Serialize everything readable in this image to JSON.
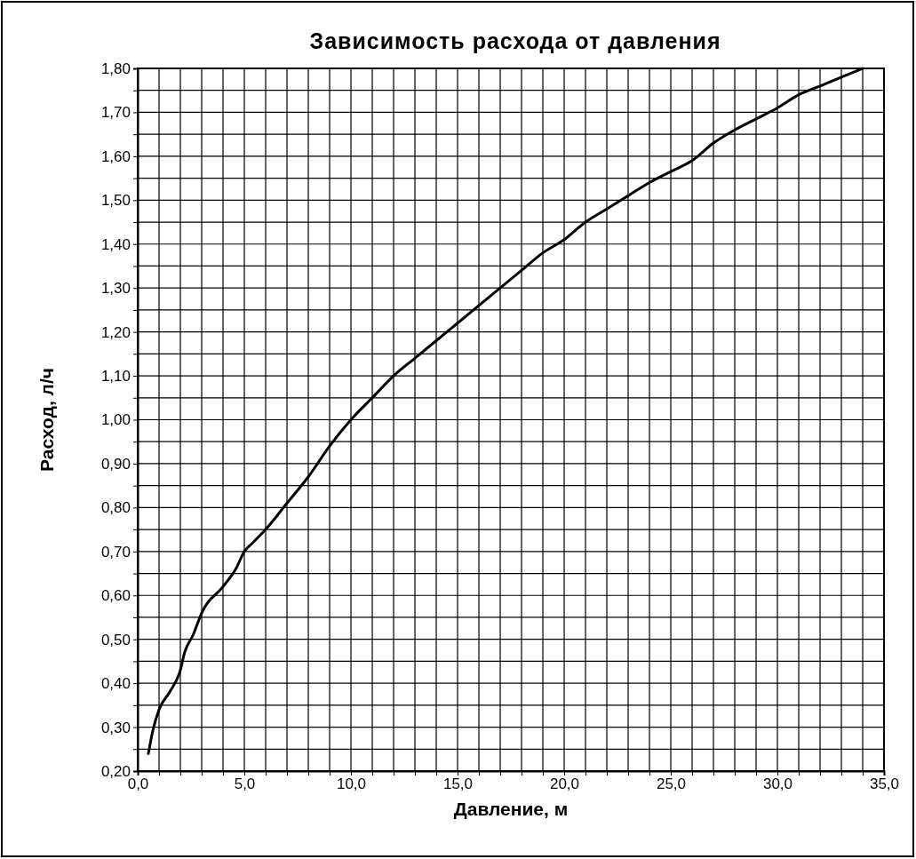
{
  "chart_data": {
    "type": "line",
    "title": "Зависимость расхода от давления",
    "xlabel": "Давление, м",
    "ylabel": "Расход, л/ч",
    "series": [
      {
        "color": "#000000",
        "x": [
          0.5,
          0.7,
          1,
          1.5,
          2,
          2.2,
          2.6,
          3,
          4,
          4.6,
          5,
          5.4,
          6,
          7,
          8,
          9,
          10,
          11,
          12,
          13,
          14,
          15,
          16,
          17,
          18,
          19,
          20,
          21,
          22,
          23,
          24,
          25,
          26,
          27,
          28,
          29,
          30,
          31,
          32,
          33,
          34
        ],
        "values": [
          0.24,
          0.29,
          0.34,
          0.38,
          0.43,
          0.47,
          0.51,
          0.56,
          0.62,
          0.66,
          0.7,
          0.72,
          0.75,
          0.81,
          0.87,
          0.94,
          1.0,
          1.05,
          1.1,
          1.14,
          1.18,
          1.22,
          1.26,
          1.3,
          1.34,
          1.38,
          1.41,
          1.45,
          1.48,
          1.51,
          1.54,
          1.565,
          1.59,
          1.63,
          1.66,
          1.685,
          1.71,
          1.74,
          1.76,
          1.78,
          1.8
        ]
      }
    ],
    "xlim": [
      0,
      35
    ],
    "xticks": [
      {
        "value": 0,
        "label": "0,0"
      },
      {
        "value": 1,
        "label": null
      },
      {
        "value": 2,
        "label": null
      },
      {
        "value": 3,
        "label": null
      },
      {
        "value": 4,
        "label": null
      },
      {
        "value": 5,
        "label": "5,0"
      },
      {
        "value": 6,
        "label": null
      },
      {
        "value": 7,
        "label": null
      },
      {
        "value": 8,
        "label": null
      },
      {
        "value": 9,
        "label": null
      },
      {
        "value": 10,
        "label": "10,0"
      },
      {
        "value": 11,
        "label": null
      },
      {
        "value": 12,
        "label": null
      },
      {
        "value": 13,
        "label": null
      },
      {
        "value": 14,
        "label": null
      },
      {
        "value": 15,
        "label": "15,0"
      },
      {
        "value": 16,
        "label": null
      },
      {
        "value": 17,
        "label": null
      },
      {
        "value": 18,
        "label": null
      },
      {
        "value": 19,
        "label": null
      },
      {
        "value": 20,
        "label": "20,0"
      },
      {
        "value": 21,
        "label": null
      },
      {
        "value": 22,
        "label": null
      },
      {
        "value": 23,
        "label": null
      },
      {
        "value": 24,
        "label": null
      },
      {
        "value": 25,
        "label": "25,0"
      },
      {
        "value": 26,
        "label": null
      },
      {
        "value": 27,
        "label": null
      },
      {
        "value": 28,
        "label": null
      },
      {
        "value": 29,
        "label": null
      },
      {
        "value": 30,
        "label": "30,0"
      },
      {
        "value": 31,
        "label": null
      },
      {
        "value": 32,
        "label": null
      },
      {
        "value": 33,
        "label": null
      },
      {
        "value": 34,
        "label": null
      },
      {
        "value": 35,
        "label": "35,0"
      }
    ],
    "ylim": [
      0.2,
      1.8
    ],
    "yticks": [
      {
        "value": 0.2,
        "label": "0,20"
      },
      {
        "value": 0.25,
        "label": null
      },
      {
        "value": 0.3,
        "label": "0,30"
      },
      {
        "value": 0.35,
        "label": null
      },
      {
        "value": 0.4,
        "label": "0,40"
      },
      {
        "value": 0.45,
        "label": null
      },
      {
        "value": 0.5,
        "label": "0,50"
      },
      {
        "value": 0.55,
        "label": null
      },
      {
        "value": 0.6,
        "label": "0,60"
      },
      {
        "value": 0.65,
        "label": null
      },
      {
        "value": 0.7,
        "label": "0,70"
      },
      {
        "value": 0.75,
        "label": null
      },
      {
        "value": 0.8,
        "label": "0,80"
      },
      {
        "value": 0.85,
        "label": null
      },
      {
        "value": 0.9,
        "label": "0,90"
      },
      {
        "value": 0.95,
        "label": null
      },
      {
        "value": 1.0,
        "label": "1,00"
      },
      {
        "value": 1.05,
        "label": null
      },
      {
        "value": 1.1,
        "label": "1,10"
      },
      {
        "value": 1.15,
        "label": null
      },
      {
        "value": 1.2,
        "label": "1,20"
      },
      {
        "value": 1.25,
        "label": null
      },
      {
        "value": 1.3,
        "label": "1,30"
      },
      {
        "value": 1.35,
        "label": null
      },
      {
        "value": 1.4,
        "label": "1,40"
      },
      {
        "value": 1.45,
        "label": null
      },
      {
        "value": 1.5,
        "label": "1,50"
      },
      {
        "value": 1.55,
        "label": null
      },
      {
        "value": 1.6,
        "label": "1,60"
      },
      {
        "value": 1.65,
        "label": null
      },
      {
        "value": 1.7,
        "label": "1,70"
      },
      {
        "value": 1.75,
        "label": null
      },
      {
        "value": 1.8,
        "label": "1,80"
      }
    ],
    "grid": true,
    "marker": "none",
    "line_style": "solid"
  }
}
